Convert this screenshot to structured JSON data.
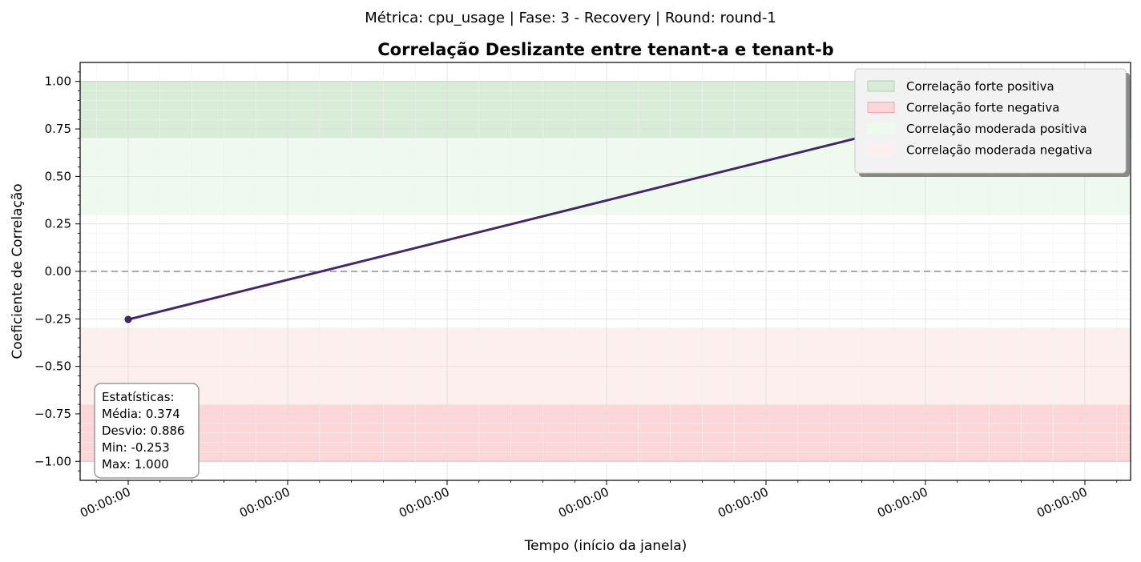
{
  "suptitle": "Métrica: cpu_usage | Fase: 3 - Recovery | Round: round-1",
  "chart_data": {
    "type": "line",
    "title": "Correlação Deslizante entre tenant-a e tenant-b",
    "xlabel": "Tempo (início da janela)",
    "ylabel": "Coeficiente de Correlação",
    "ylim": [
      -1.1,
      1.1
    ],
    "yticks": [
      1.0,
      0.75,
      0.5,
      0.25,
      0.0,
      -0.25,
      -0.5,
      -0.75,
      -1.0
    ],
    "ytick_labels": [
      "1.00",
      "0.75",
      "0.50",
      "0.25",
      "0.00",
      "−0.25",
      "−0.50",
      "−0.75",
      "−1.00"
    ],
    "xtick_labels": [
      "00:00:00",
      "00:00:00",
      "00:00:00",
      "00:00:00",
      "00:00:00",
      "00:00:00",
      "00:00:00"
    ],
    "series": [
      {
        "values": [
          -0.253,
          1.0
        ],
        "color": "#44246e"
      }
    ],
    "zero_line": 0.0,
    "bands": [
      {
        "label": "Correlação forte positiva",
        "from": 0.7,
        "to": 1.0,
        "color": "#d8ecd8",
        "edge": "#a8d4a8"
      },
      {
        "label": "Correlação forte negativa",
        "from": -1.0,
        "to": -0.7,
        "color": "#fdd7d7",
        "edge": "#f2a8a8"
      },
      {
        "label": "Correlação moderada positiva",
        "from": 0.3,
        "to": 0.7,
        "color": "#effaef",
        "edge": "#effaef"
      },
      {
        "label": "Correlação moderada negativa",
        "from": -0.7,
        "to": -0.3,
        "color": "#fcefee",
        "edge": "#fcefee"
      }
    ],
    "legend_position": "top-right",
    "grid": true,
    "stats": {
      "title": "Estatísticas:",
      "mean": "Média: 0.374",
      "std": "Desvio: 0.886",
      "min": "Min: -0.253",
      "max": "Max: 1.000"
    }
  }
}
